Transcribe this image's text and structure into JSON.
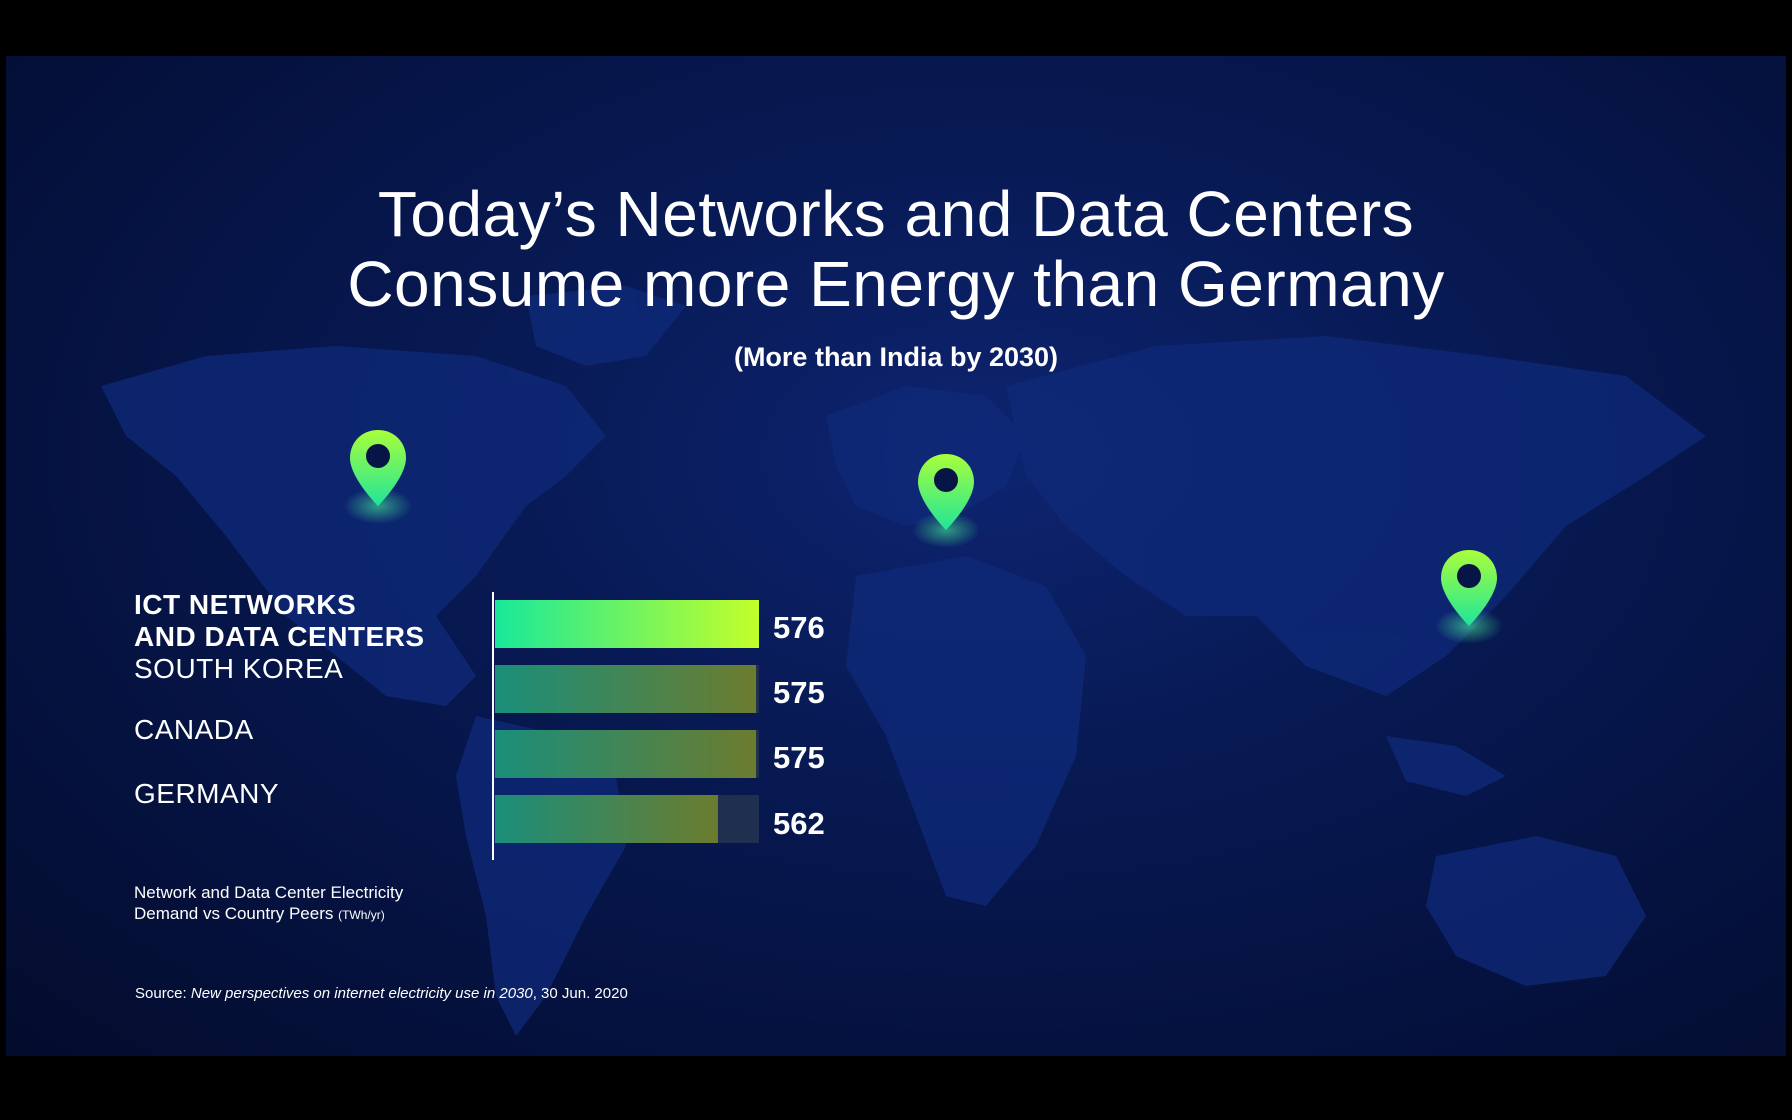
{
  "slide": {
    "title_line1": "Today’s Networks and Data Centers",
    "title_line2": "Consume more Energy than Germany",
    "subtitle": "(More than India by 2030)",
    "caption_line1": "Network and Data Center Electricity",
    "caption_line2": "Demand vs Country Peers",
    "caption_unit": "(TWh/yr)",
    "source_prefix": "Source: ",
    "source_title": "New perspectives on internet electricity use in 2030",
    "source_suffix": ", 30 Jun. 2020",
    "pins": [
      "map-pin-icon",
      "map-pin-icon",
      "map-pin-icon"
    ]
  },
  "chart_data": {
    "type": "bar",
    "orientation": "horizontal",
    "categories": [
      "ICT NETWORKS AND DATA CENTERS",
      "SOUTH KOREA",
      "CANADA",
      "GERMANY"
    ],
    "category_lines": [
      [
        "ICT NETWORKS",
        "AND DATA CENTERS"
      ],
      [
        "SOUTH KOREA"
      ],
      [
        "CANADA"
      ],
      [
        "GERMANY"
      ]
    ],
    "values": [
      576,
      575,
      575,
      562
    ],
    "value_labels": [
      "576",
      "575",
      "575",
      "562"
    ],
    "xlim": [
      0,
      576
    ],
    "colors": {
      "highlight_start": "#19e89a",
      "highlight_end": "#c3ff2a",
      "muted_start": "#1a8e7a",
      "muted_end": "#6c7c2f",
      "track": "#1f2f4f"
    }
  }
}
